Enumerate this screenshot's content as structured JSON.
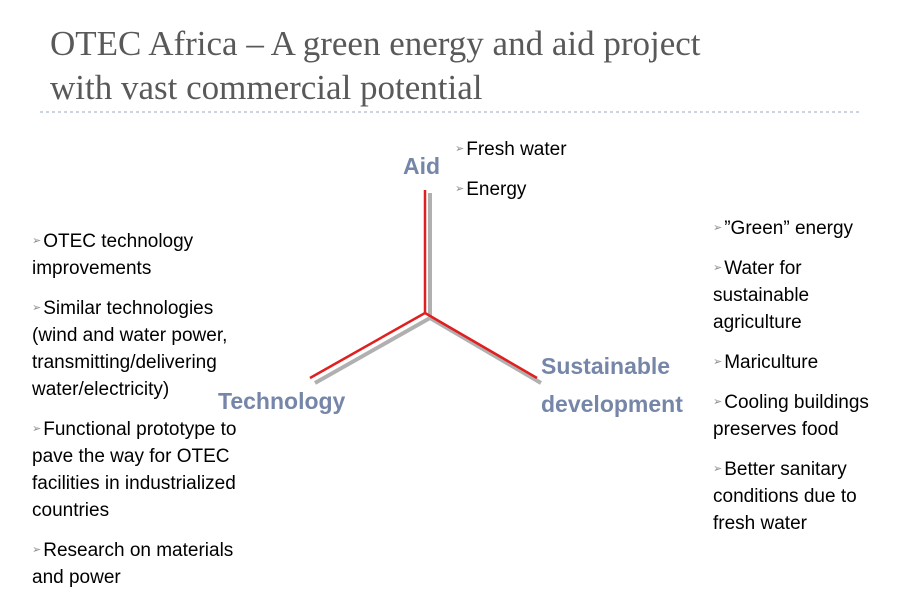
{
  "title": [
    "OTEC Africa – A green energy and aid project",
    "with vast commercial potential"
  ],
  "nodes": [
    {
      "label": [
        "Aid"
      ],
      "items": [
        [
          "Fresh water"
        ],
        [
          "Energy"
        ]
      ]
    },
    {
      "label": [
        "Technology"
      ],
      "items": [
        [
          "OTEC technology",
          "improvements"
        ],
        [
          "Similar technologies",
          "(wind and water power,",
          "transmitting/delivering",
          "water/electricity)"
        ],
        [
          "Functional prototype to",
          "pave the way for OTEC",
          "facilities in industrialized",
          "countries"
        ],
        [
          "Research on materials",
          "and power"
        ]
      ]
    },
    {
      "label": [
        "Sustainable",
        "development"
      ],
      "items": [
        [
          "”Green” energy"
        ],
        [
          "Water for",
          "sustainable",
          "agriculture"
        ],
        [
          "Mariculture"
        ],
        [
          "Cooling buildings",
          "preserves food"
        ],
        [
          "Better sanitary",
          "conditions due to",
          "fresh water"
        ]
      ]
    }
  ]
}
